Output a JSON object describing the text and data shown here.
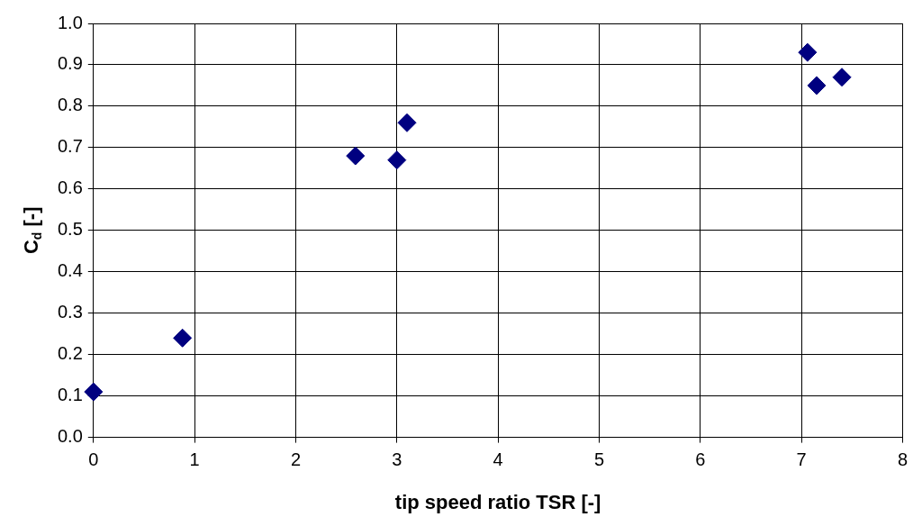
{
  "chart_data": {
    "type": "scatter",
    "xlabel": "tip speed ratio TSR [-]",
    "ylabel": "C$_{d}$ [-]",
    "x": [
      0,
      0.88,
      2.59,
      3.0,
      3.1,
      7.06,
      7.15,
      7.4
    ],
    "series": [
      {
        "color": "#000080",
        "values": [
          0.11,
          0.24,
          0.68,
          0.67,
          0.76,
          0.93,
          0.85,
          0.87
        ]
      }
    ],
    "xlim": [
      0,
      8
    ],
    "xticks": [
      0,
      1,
      2,
      3,
      4,
      5,
      6,
      7,
      8
    ],
    "ylim": [
      0,
      1
    ],
    "yticks": [
      {
        "value": 0,
        "label": "0.0"
      },
      {
        "value": 0.1,
        "label": "0.1"
      },
      {
        "value": 0.2,
        "label": "0.2"
      },
      {
        "value": 0.3,
        "label": "0.3"
      },
      {
        "value": 0.4,
        "label": "0.4"
      },
      {
        "value": 0.5,
        "label": "0.5"
      },
      {
        "value": 0.6,
        "label": "0.6"
      },
      {
        "value": 0.7,
        "label": "0.7"
      },
      {
        "value": 0.8,
        "label": "0.8"
      },
      {
        "value": 0.9,
        "label": "0.9"
      },
      {
        "value": 1,
        "label": "1.0"
      }
    ],
    "grid": true,
    "legend": false,
    "marker": "diamond"
  }
}
